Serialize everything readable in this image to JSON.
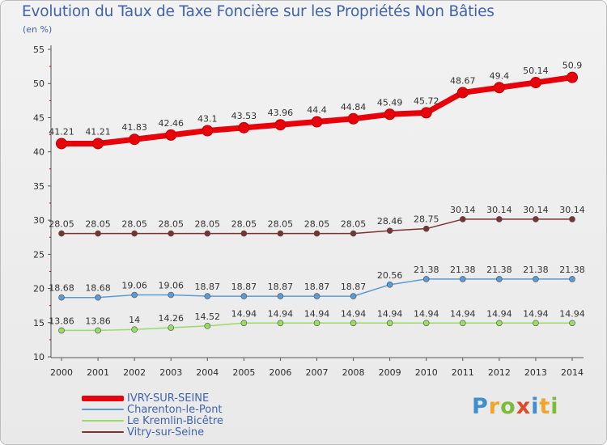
{
  "title": "Evolution du Taux de Taxe Foncière sur les Propriétés Non Bâties",
  "unit_label": "(en %)",
  "brand": {
    "text": "Proxiti",
    "letters": [
      {
        "ch": "P",
        "color": "#3d8fd0"
      },
      {
        "ch": "r",
        "color": "#f2a32a"
      },
      {
        "ch": "o",
        "color": "#7dbb3c"
      },
      {
        "ch": "x",
        "color": "#e0492b"
      },
      {
        "ch": "i",
        "color": "#3d8fd0"
      },
      {
        "ch": "t",
        "color": "#f2a32a"
      },
      {
        "ch": "i",
        "color": "#7dbb3c"
      }
    ]
  },
  "chart_data": {
    "type": "line",
    "x": [
      2000,
      2001,
      2002,
      2003,
      2004,
      2005,
      2006,
      2007,
      2008,
      2009,
      2010,
      2011,
      2012,
      2013,
      2014
    ],
    "ylim": [
      10,
      55
    ],
    "yticks": [
      10,
      15,
      20,
      25,
      30,
      35,
      40,
      45,
      50,
      55
    ],
    "grid": false,
    "legend_position": "bottom-left",
    "series": [
      {
        "name": "IVRY-SUR-SEINE",
        "color": "#e8000b",
        "values": [
          41.21,
          41.21,
          41.83,
          42.46,
          43.1,
          43.53,
          43.96,
          44.4,
          44.84,
          45.49,
          45.72,
          48.67,
          49.4,
          50.14,
          50.9
        ],
        "labels": [
          "41.21",
          "41.21",
          "41.83",
          "42.46",
          "43.1",
          "43.53",
          "43.96",
          "44.4",
          "44.84",
          "45.49",
          "45.72",
          "48.67",
          "49.4",
          "50.14",
          "50.9"
        ]
      },
      {
        "name": "Charenton-le-Pont",
        "color": "#5b9bd5",
        "values": [
          18.68,
          18.68,
          19.06,
          19.06,
          18.87,
          18.87,
          18.87,
          18.87,
          18.87,
          20.56,
          21.38,
          21.38,
          21.38,
          21.38,
          21.38
        ],
        "labels": [
          "18.68",
          "18.68",
          "19.06",
          "19.06",
          "18.87",
          "18.87",
          "18.87",
          "18.87",
          "18.87",
          "20.56",
          "21.38",
          "21.38",
          "21.38",
          "21.38",
          "21.38"
        ]
      },
      {
        "name": "Le Kremlin-Bicêtre",
        "color": "#99dd66",
        "values": [
          13.86,
          13.86,
          14,
          14.26,
          14.52,
          14.94,
          14.94,
          14.94,
          14.94,
          14.94,
          14.94,
          14.94,
          14.94,
          14.94,
          14.94
        ],
        "labels": [
          "13.86",
          "13.86",
          "14",
          "14.26",
          "14.52",
          "14.94",
          "14.94",
          "14.94",
          "14.94",
          "14.94",
          "14.94",
          "14.94",
          "14.94",
          "14.94",
          "14.94"
        ]
      },
      {
        "name": "Vitry-sur-Seine",
        "color": "#7a3333",
        "values": [
          28.05,
          28.05,
          28.05,
          28.05,
          28.05,
          28.05,
          28.05,
          28.05,
          28.05,
          28.46,
          28.75,
          30.14,
          30.14,
          30.14,
          30.14
        ],
        "labels": [
          "28.05",
          "28.05",
          "28.05",
          "28.05",
          "28.05",
          "28.05",
          "28.05",
          "28.05",
          "28.05",
          "28.46",
          "28.75",
          "30.14",
          "30.14",
          "30.14",
          "30.14"
        ]
      }
    ]
  }
}
